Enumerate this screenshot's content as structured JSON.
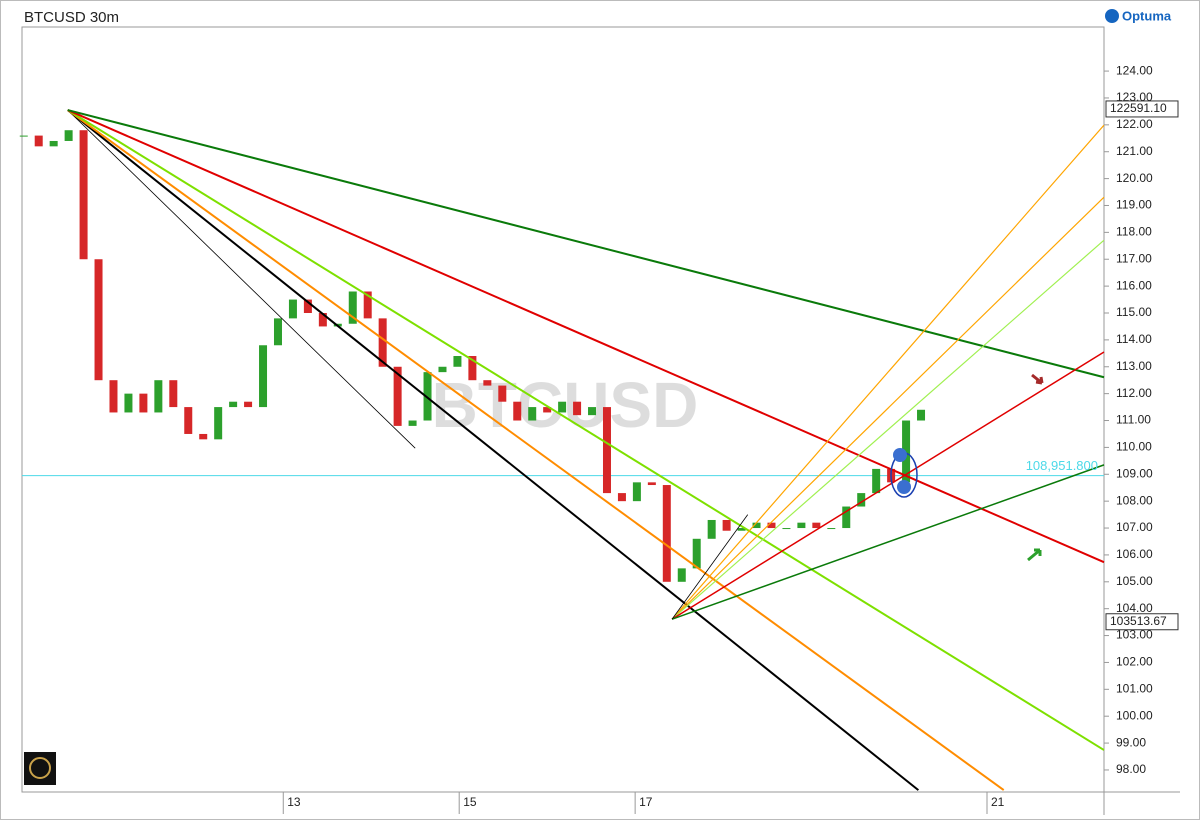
{
  "chart_data": {
    "type": "candlestick",
    "title": "BTCUSD 30m",
    "brand": "Optuma",
    "watermark": "BTCUSD",
    "up_color": "#2ca02c",
    "down_color": "#d62728",
    "xlim": [
      10.03,
      22.33
    ],
    "xticks": [
      13,
      15,
      17,
      21
    ],
    "ylim": [
      97.18,
      125.64
    ],
    "yticks": [
      {
        "value": 98,
        "label": "98.00"
      },
      {
        "value": 99,
        "label": "99.00"
      },
      {
        "value": 100,
        "label": "100.00"
      },
      {
        "value": 101,
        "label": "101.00"
      },
      {
        "value": 102,
        "label": "102.00"
      },
      {
        "value": 103,
        "label": "103.00"
      },
      {
        "value": 104,
        "label": "104.00"
      },
      {
        "value": 105,
        "label": "105.00"
      },
      {
        "value": 106,
        "label": "106.00"
      },
      {
        "value": 107,
        "label": "107.00"
      },
      {
        "value": 108,
        "label": "108.00"
      },
      {
        "value": 109,
        "label": "109.00"
      },
      {
        "value": 110,
        "label": "110.00"
      },
      {
        "value": 111,
        "label": "111.00"
      },
      {
        "value": 112,
        "label": "112.00"
      },
      {
        "value": 113,
        "label": "113.00"
      },
      {
        "value": 114,
        "label": "114.00"
      },
      {
        "value": 115,
        "label": "115.00"
      },
      {
        "value": 116,
        "label": "116.00"
      },
      {
        "value": 117,
        "label": "117.00"
      },
      {
        "value": 118,
        "label": "118.00"
      },
      {
        "value": 119,
        "label": "119.00"
      },
      {
        "value": 120,
        "label": "120.00"
      },
      {
        "value": 121,
        "label": "121.00"
      },
      {
        "value": 122,
        "label": "122.00"
      },
      {
        "value": 123,
        "label": "123.00"
      },
      {
        "value": 124,
        "label": "124.00"
      }
    ],
    "x": [
      10.05,
      10.22,
      10.39,
      10.56,
      10.73,
      10.9,
      11.07,
      11.24,
      11.41,
      11.58,
      11.75,
      11.92,
      12.09,
      12.26,
      12.43,
      12.6,
      12.77,
      12.94,
      13.11,
      13.28,
      13.45,
      13.62,
      13.79,
      13.96,
      14.13,
      14.3,
      14.47,
      14.64,
      14.81,
      14.98,
      15.15,
      15.32,
      15.49,
      15.66,
      15.83,
      16.0,
      16.17,
      16.34,
      16.51,
      16.68,
      16.85,
      17.02,
      17.19,
      17.36,
      17.53,
      17.7,
      17.87,
      18.04,
      18.21,
      18.38,
      18.55,
      18.72,
      18.89,
      19.06,
      19.23,
      19.4,
      19.57,
      19.74,
      19.91,
      20.08,
      20.25
    ],
    "values": [
      121.6,
      121.2,
      121.4,
      121.8,
      117,
      112.5,
      111.3,
      112.0,
      111.3,
      112.5,
      111.5,
      110.5,
      110.3,
      111.5,
      111.7,
      111.5,
      113.8,
      114.8,
      115.5,
      115.0,
      114.5,
      114.6,
      115.8,
      114.8,
      113.0,
      110.8,
      111.0,
      112.8,
      113.0,
      113.4,
      112.5,
      112.3,
      111.7,
      111.0,
      111.5,
      111.3,
      111.7,
      111.2,
      111.5,
      108.3,
      108.0,
      108.7,
      108.6,
      105.0,
      105.5,
      106.6,
      107.3,
      106.9,
      107.0,
      107.2,
      107.0,
      107.0,
      107.2,
      107.0,
      107.0,
      107.8,
      108.3,
      109.2,
      108.7,
      111.0,
      111.4
    ],
    "horizontal_line": {
      "value": 108.9518,
      "label": "108,951.800",
      "color": "#4dd9e8"
    },
    "price_labels": [
      {
        "value": 122.5911,
        "label": "122591.10"
      },
      {
        "value": 103.51367,
        "label": "103513.67"
      }
    ],
    "trendlines": [
      {
        "color": "#000000",
        "width": 2,
        "x": [
          10.55,
          20.22
        ],
        "y": [
          122.55,
          97.25
        ]
      },
      {
        "color": "#000000",
        "width": 0.8,
        "x": [
          10.55,
          14.5
        ],
        "y": [
          122.55,
          109.97
        ]
      },
      {
        "color": "#ff8c00",
        "width": 2,
        "x": [
          10.55,
          21.19
        ],
        "y": [
          122.55,
          97.25
        ]
      },
      {
        "color": "#7ee000",
        "width": 2,
        "x": [
          10.55,
          22.33
        ],
        "y": [
          122.55,
          98.74
        ]
      },
      {
        "color": "#e00000",
        "width": 2,
        "x": [
          10.55,
          22.33
        ],
        "y": [
          122.55,
          105.73
        ]
      },
      {
        "color": "#0a7a0a",
        "width": 2,
        "x": [
          10.55,
          22.33
        ],
        "y": [
          122.55,
          112.61
        ]
      },
      {
        "color": "#ffa500",
        "width": 1.2,
        "x": [
          17.42,
          22.33
        ],
        "y": [
          103.61,
          121.99
        ]
      },
      {
        "color": "#ffa500",
        "width": 1.2,
        "x": [
          17.42,
          22.33
        ],
        "y": [
          103.61,
          119.31
        ]
      },
      {
        "color": "#a0f050",
        "width": 1.2,
        "x": [
          17.42,
          22.33
        ],
        "y": [
          103.61,
          117.71
        ]
      },
      {
        "color": "#e00000",
        "width": 1.5,
        "x": [
          17.42,
          22.33
        ],
        "y": [
          103.61,
          113.55
        ]
      },
      {
        "color": "#0a7a0a",
        "width": 1.5,
        "x": [
          17.42,
          22.33
        ],
        "y": [
          103.61,
          109.35
        ]
      },
      {
        "color": "#000000",
        "width": 0.8,
        "x": [
          17.42,
          18.28
        ],
        "y": [
          103.61,
          107.5
        ]
      }
    ]
  }
}
